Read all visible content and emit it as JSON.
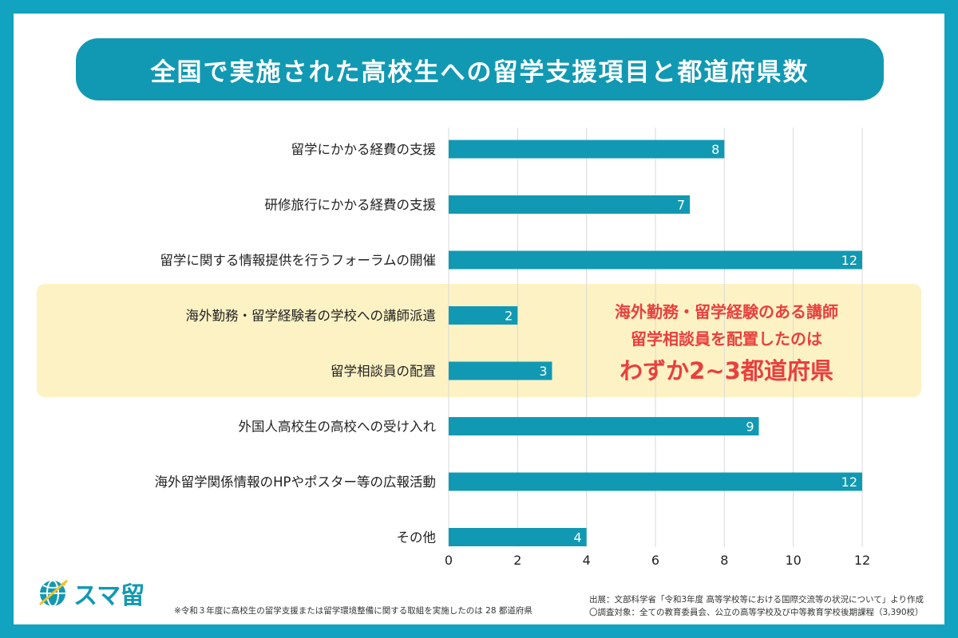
{
  "title": "全国で実施された高校生への留学支援項目と都道府県数",
  "chart_data": {
    "type": "bar",
    "orientation": "horizontal",
    "categories": [
      "留学にかかる経費の支援",
      "研修旅行にかかる経費の支援",
      "留学に関する情報提供を行うフォーラムの開催",
      "海外勤務・留学経験者の学校への講師派遣",
      "留学相談員の配置",
      "外国人高校生の高校への受け入れ",
      "海外留学関係情報のHPやポスター等の広報活動",
      "その他"
    ],
    "values": [
      8,
      7,
      12,
      2,
      3,
      9,
      12,
      4
    ],
    "xlim": [
      0,
      12
    ],
    "xticks": [
      0,
      2,
      4,
      6,
      8,
      10,
      12
    ],
    "grid": true,
    "highlighted_categories": [
      3,
      4
    ],
    "bar_color": "#1199b3",
    "highlight_color": "#fdf2c4"
  },
  "callout": {
    "line1": "海外勤務・留学経験のある講師",
    "line2": "留学相談員を配置したのは",
    "line3": "わずか2~3都道府県"
  },
  "logo": {
    "text": "スマ留",
    "icon": "globe-icon"
  },
  "footnote": "※令和３年度に高校生の留学支援または留学環境整備に関する取組を実施したのは 28 都道府県",
  "source": {
    "line1": "出展：文部科学省「令和3年度 高等学校等における国際交流等の状況について」より作成",
    "line2": "〇調査対象：全ての教育委員会、公立の高等学校及び中等教育学校後期課程（3,390校）"
  },
  "colors": {
    "frame": "#11a3c0",
    "title_bg": "#1199b3",
    "callout_text": "#e8403f"
  }
}
